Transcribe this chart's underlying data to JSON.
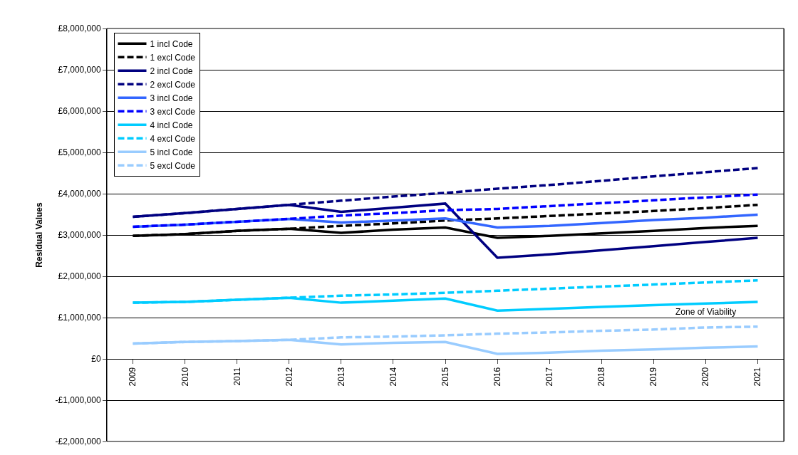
{
  "chart_data": {
    "type": "line",
    "ylabel": "Residual Values",
    "categories": [
      "2009",
      "2010",
      "2011",
      "2012",
      "2013",
      "2014",
      "2015",
      "2016",
      "2017",
      "2018",
      "2019",
      "2020",
      "2021"
    ],
    "series": [
      {
        "name": "1 incl Code",
        "color": "#000000",
        "line_style": "solid",
        "values": [
          2980000,
          3020000,
          3100000,
          3150000,
          3050000,
          3130000,
          3180000,
          2930000,
          2980000,
          3040000,
          3100000,
          3170000,
          3220000
        ]
      },
      {
        "name": "1 excl Code",
        "color": "#000000",
        "line_style": "dashed",
        "values": [
          2980000,
          3020000,
          3100000,
          3150000,
          3220000,
          3280000,
          3350000,
          3400000,
          3460000,
          3520000,
          3580000,
          3650000,
          3730000
        ]
      },
      {
        "name": "2 incl Code",
        "color": "#000080",
        "line_style": "solid",
        "values": [
          3440000,
          3530000,
          3630000,
          3730000,
          3560000,
          3660000,
          3760000,
          2450000,
          2530000,
          2630000,
          2730000,
          2830000,
          2930000
        ]
      },
      {
        "name": "2 excl Code",
        "color": "#000080",
        "line_style": "dashed",
        "values": [
          3440000,
          3530000,
          3630000,
          3730000,
          3830000,
          3930000,
          4020000,
          4120000,
          4210000,
          4310000,
          4420000,
          4520000,
          4620000
        ]
      },
      {
        "name": "3 incl Code",
        "color": "#3366ff",
        "line_style": "solid",
        "values": [
          3200000,
          3250000,
          3320000,
          3390000,
          3300000,
          3350000,
          3400000,
          3180000,
          3220000,
          3290000,
          3360000,
          3420000,
          3490000
        ]
      },
      {
        "name": "3 excl Code",
        "color": "#0000ff",
        "line_style": "dashed",
        "values": [
          3200000,
          3250000,
          3320000,
          3390000,
          3470000,
          3530000,
          3600000,
          3630000,
          3700000,
          3770000,
          3840000,
          3910000,
          3980000
        ]
      },
      {
        "name": "4 incl Code",
        "color": "#00ccff",
        "line_style": "solid",
        "values": [
          1360000,
          1380000,
          1430000,
          1480000,
          1360000,
          1410000,
          1460000,
          1170000,
          1210000,
          1260000,
          1300000,
          1340000,
          1380000
        ]
      },
      {
        "name": "4 excl Code",
        "color": "#00ccff",
        "line_style": "dashed",
        "values": [
          1360000,
          1380000,
          1430000,
          1480000,
          1530000,
          1560000,
          1600000,
          1650000,
          1700000,
          1750000,
          1800000,
          1850000,
          1900000
        ]
      },
      {
        "name": "5 incl Code",
        "color": "#99ccff",
        "line_style": "solid",
        "values": [
          370000,
          410000,
          430000,
          460000,
          350000,
          390000,
          410000,
          120000,
          150000,
          200000,
          230000,
          270000,
          300000
        ]
      },
      {
        "name": "5 excl Code",
        "color": "#99ccff",
        "line_style": "dashed",
        "values": [
          370000,
          410000,
          430000,
          460000,
          520000,
          540000,
          570000,
          610000,
          640000,
          680000,
          710000,
          760000,
          780000
        ]
      }
    ],
    "ylim": [
      -2000000,
      8000000
    ],
    "yticks": [
      {
        "value": -2000000,
        "label": "-£2,000,000"
      },
      {
        "value": -1000000,
        "label": "-£1,000,000"
      },
      {
        "value": 0,
        "label": "£0"
      },
      {
        "value": 1000000,
        "label": "£1,000,000"
      },
      {
        "value": 2000000,
        "label": "£2,000,000"
      },
      {
        "value": 3000000,
        "label": "£3,000,000"
      },
      {
        "value": 4000000,
        "label": "£4,000,000"
      },
      {
        "value": 5000000,
        "label": "£5,000,000"
      },
      {
        "value": 6000000,
        "label": "£6,000,000"
      },
      {
        "value": 7000000,
        "label": "£7,000,000"
      },
      {
        "value": 8000000,
        "label": "£8,000,000"
      }
    ],
    "grid": "y",
    "legend": "top left",
    "marker": "none",
    "annotations": [
      {
        "text": "Zone of Viability",
        "x": "2020",
        "y": 1300000
      }
    ]
  }
}
